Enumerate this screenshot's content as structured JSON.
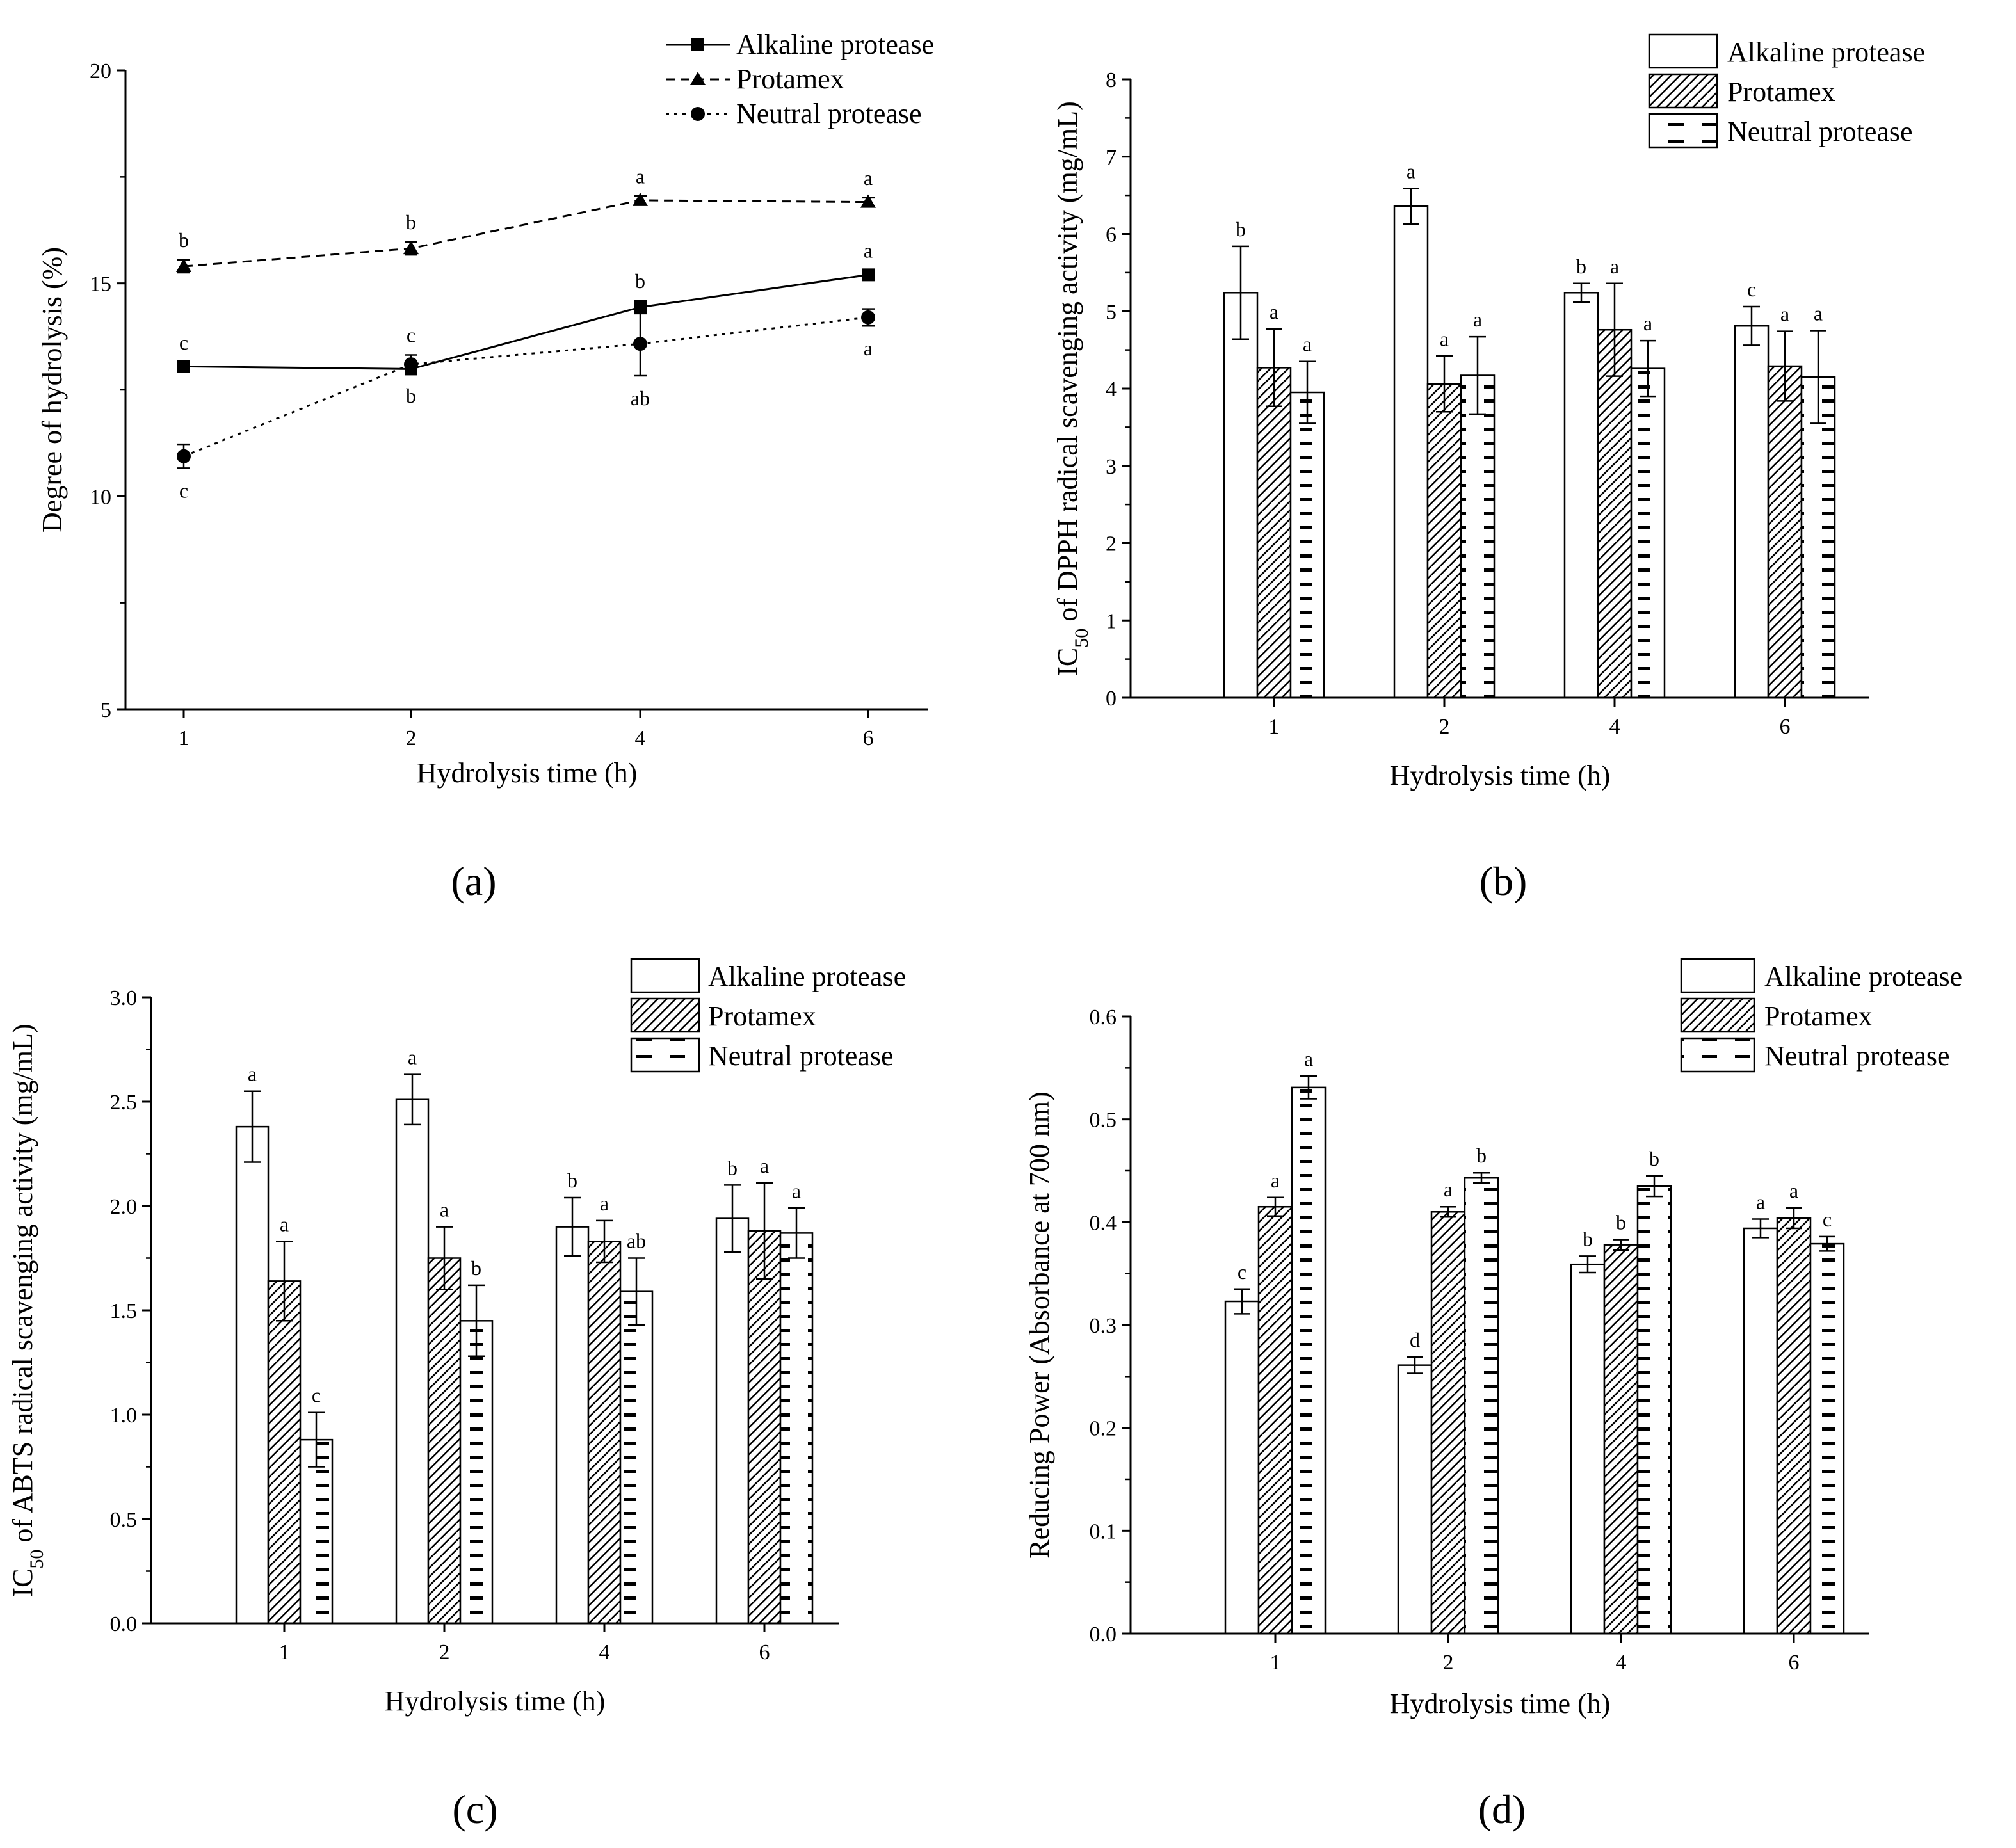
{
  "chart_data": [
    {
      "type": "line",
      "panel_label": "(a)",
      "x": [
        "1",
        "2",
        "4",
        "6"
      ],
      "xlabel": "Hydrolysis time (h)",
      "ylabel": "Degree of hydrolysis (%)",
      "ylim": [
        5,
        20
      ],
      "yticks": [
        "5",
        "10",
        "15",
        "20"
      ],
      "legend_position": "top-right",
      "series": [
        {
          "name": "Alkaline protease",
          "values": [
            13.05,
            12.99,
            14.44,
            15.2
          ],
          "errors": [
            0.1,
            0.1,
            0.15,
            0.1
          ],
          "letters": [
            "c",
            "b",
            "b",
            "a"
          ],
          "letter_pos": [
            "above",
            "below",
            "above",
            "above"
          ]
        },
        {
          "name": "Protamex",
          "values": [
            15.4,
            15.82,
            16.95,
            16.91
          ],
          "errors": [
            0.15,
            0.15,
            0.1,
            0.1
          ],
          "letters": [
            "b",
            "b",
            "a",
            "a"
          ],
          "letter_pos": [
            "above",
            "above",
            "above",
            "above"
          ]
        },
        {
          "name": "Neutral protease",
          "values": [
            10.94,
            13.1,
            13.58,
            14.2
          ],
          "errors": [
            0.28,
            0.22,
            0.75,
            0.2
          ],
          "letters": [
            "c",
            "c",
            "ab",
            "a"
          ],
          "letter_pos": [
            "below",
            "above",
            "below",
            "below"
          ]
        }
      ]
    },
    {
      "type": "bar",
      "panel_label": "(b)",
      "categories": [
        "1",
        "2",
        "4",
        "6"
      ],
      "xlabel": "Hydrolysis time (h)",
      "ylabel_parts": [
        "IC",
        "50",
        " of DPPH radical scavenging activity (mg/mL)"
      ],
      "ylim": [
        0,
        8
      ],
      "yticks": [
        "0",
        "1",
        "2",
        "3",
        "4",
        "5",
        "6",
        "7",
        "8"
      ],
      "legend_position": "top-right",
      "series": [
        {
          "name": "Alkaline protease",
          "values": [
            5.24,
            6.36,
            5.24,
            4.81
          ],
          "errors": [
            0.6,
            0.23,
            0.12,
            0.25
          ],
          "letters": [
            "b",
            "a",
            "b",
            "c"
          ]
        },
        {
          "name": "Protamex",
          "values": [
            4.27,
            4.06,
            4.76,
            4.29
          ],
          "errors": [
            0.5,
            0.36,
            0.6,
            0.45
          ],
          "letters": [
            "a",
            "a",
            "a",
            "a"
          ]
        },
        {
          "name": "Neutral protease",
          "values": [
            3.95,
            4.17,
            4.26,
            4.15
          ],
          "errors": [
            0.4,
            0.5,
            0.36,
            0.6
          ],
          "letters": [
            "a",
            "a",
            "a",
            "a"
          ]
        }
      ]
    },
    {
      "type": "bar",
      "panel_label": "(c)",
      "categories": [
        "1",
        "2",
        "4",
        "6"
      ],
      "xlabel": "Hydrolysis time (h)",
      "ylabel_parts": [
        "IC",
        "50",
        " of ABTS radical scavenging activity (mg/mL)"
      ],
      "ylim": [
        0,
        3
      ],
      "yticks": [
        "0.0",
        "0.5",
        "1.0",
        "1.5",
        "2.0",
        "2.5",
        "3.0"
      ],
      "legend_position": "top-right",
      "series": [
        {
          "name": "Alkaline protease",
          "values": [
            2.38,
            2.51,
            1.9,
            1.94
          ],
          "errors": [
            0.17,
            0.12,
            0.14,
            0.16
          ],
          "letters": [
            "a",
            "a",
            "b",
            "b"
          ]
        },
        {
          "name": "Protamex",
          "values": [
            1.64,
            1.75,
            1.83,
            1.88
          ],
          "errors": [
            0.19,
            0.15,
            0.1,
            0.23
          ],
          "letters": [
            "a",
            "a",
            "a",
            "a"
          ]
        },
        {
          "name": "Neutral protease",
          "values": [
            0.88,
            1.45,
            1.59,
            1.87
          ],
          "errors": [
            0.13,
            0.17,
            0.16,
            0.12
          ],
          "letters": [
            "c",
            "b",
            "ab",
            "a"
          ]
        }
      ]
    },
    {
      "type": "bar",
      "panel_label": "(d)",
      "categories": [
        "1",
        "2",
        "4",
        "6"
      ],
      "xlabel": "Hydrolysis time (h)",
      "ylabel": "Reducing Power (Absorbance at 700 nm)",
      "ylim": [
        0,
        0.6
      ],
      "yticks": [
        "0.0",
        "0.1",
        "0.2",
        "0.3",
        "0.4",
        "0.5",
        "0.6"
      ],
      "legend_position": "top-right",
      "series": [
        {
          "name": "Alkaline protease",
          "values": [
            0.323,
            0.261,
            0.359,
            0.394
          ],
          "errors": [
            0.012,
            0.008,
            0.008,
            0.009
          ],
          "letters": [
            "c",
            "d",
            "b",
            "a"
          ]
        },
        {
          "name": "Protamex",
          "values": [
            0.415,
            0.41,
            0.378,
            0.404
          ],
          "errors": [
            0.009,
            0.005,
            0.005,
            0.01
          ],
          "letters": [
            "a",
            "a",
            "b",
            "a"
          ]
        },
        {
          "name": "Neutral protease",
          "values": [
            0.531,
            0.443,
            0.435,
            0.379
          ],
          "errors": [
            0.011,
            0.005,
            0.01,
            0.007
          ],
          "letters": [
            "a",
            "b",
            "b",
            "c"
          ]
        }
      ]
    }
  ]
}
